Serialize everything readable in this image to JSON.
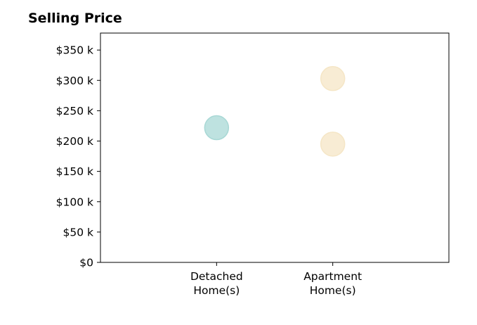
{
  "chart_data": {
    "type": "scatter",
    "title": "Selling Price",
    "xlabel": "",
    "ylabel": "",
    "categories": [
      {
        "line1": "Detached",
        "line2": "Home(s)"
      },
      {
        "line1": "Apartment",
        "line2": "Home(s)"
      }
    ],
    "xlim": [
      0,
      3
    ],
    "ylim": [
      0,
      378000
    ],
    "yticks": [
      0,
      50000,
      100000,
      150000,
      200000,
      250000,
      300000,
      350000
    ],
    "ytick_labels": [
      "$0",
      "$50 k",
      "$100 k",
      "$150 k",
      "$200 k",
      "$250 k",
      "$300 k",
      "$350 k"
    ],
    "grid": false,
    "points": [
      {
        "category": 0,
        "y": 222000,
        "color": "#a8d8d5"
      },
      {
        "category": 1,
        "y": 303000,
        "color": "#f5e6c6"
      },
      {
        "category": 1,
        "y": 195000,
        "color": "#f5e6c6"
      }
    ]
  }
}
